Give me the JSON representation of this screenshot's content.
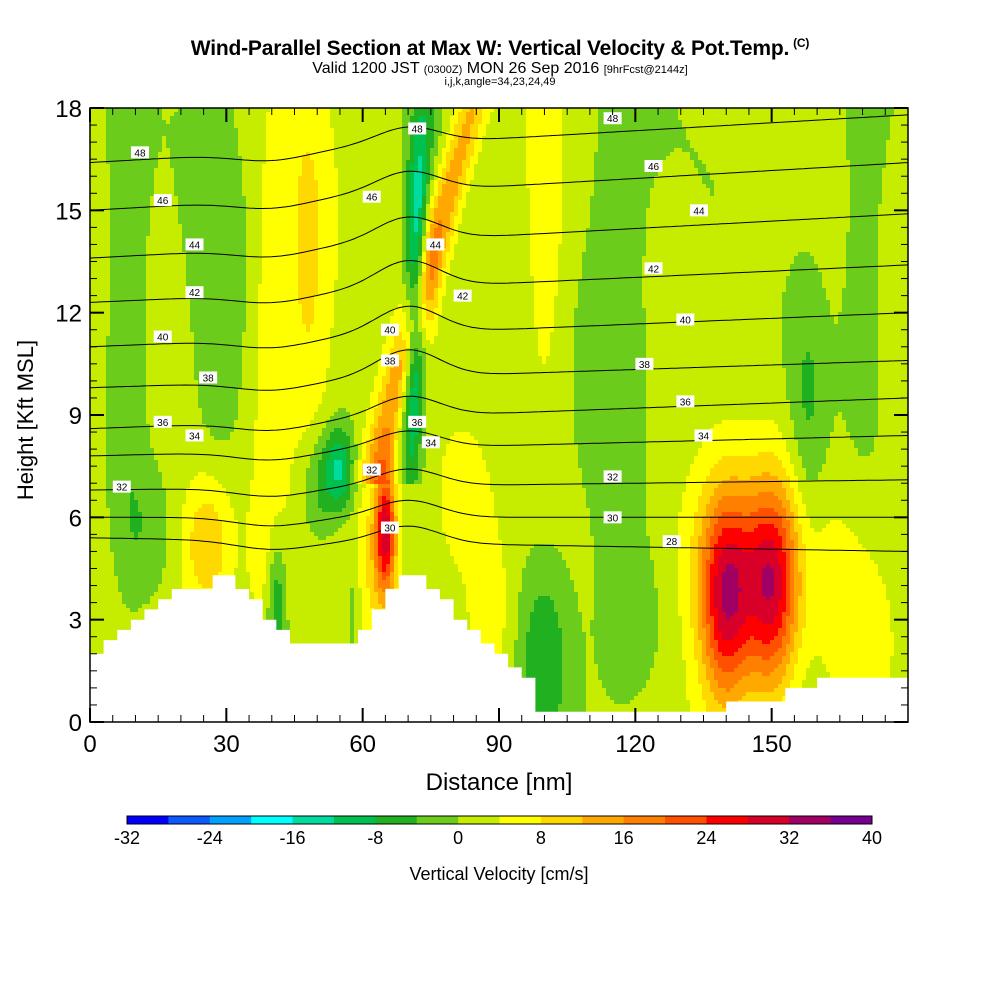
{
  "header": {
    "title": "Wind-Parallel Section at Max W: Vertical Velocity & Pot.Temp.",
    "corner_mark": "(C)",
    "valid_main": "Valid 1200 JST",
    "valid_utc": "(0300Z)",
    "valid_date": "MON 26 Sep 2016",
    "forecast_tag": "[9hrFcst@2144z]",
    "indices": "i,j,k,angle=34,23,24,49"
  },
  "chart_data": {
    "type": "heatmap",
    "xlabel": "Distance [nm]",
    "ylabel": "Height [Kft MSL]",
    "xlim": [
      0,
      180
    ],
    "ylim": [
      0,
      18
    ],
    "x_ticks": [
      0,
      30,
      60,
      90,
      120,
      150
    ],
    "y_ticks": [
      0,
      3,
      6,
      9,
      12,
      15,
      18
    ],
    "colorbar": {
      "label": "Vertical Velocity [cm/s]",
      "levels": [
        -32,
        -28,
        -24,
        -20,
        -16,
        -12,
        -8,
        -4,
        0,
        4,
        8,
        12,
        16,
        20,
        24,
        28,
        32,
        36,
        40
      ],
      "tick_labels": [
        "-32",
        "-24",
        "-16",
        "-8",
        "0",
        "8",
        "16",
        "24",
        "32",
        "40"
      ],
      "colors": [
        "#0000ff",
        "#0c5aff",
        "#00a0ff",
        "#00ffff",
        "#00dca0",
        "#00c050",
        "#20b020",
        "#6ccc1c",
        "#c6ec00",
        "#ffff00",
        "#ffd800",
        "#ffa800",
        "#ff8000",
        "#ff5000",
        "#ff0000",
        "#d80028",
        "#a00064",
        "#780090"
      ]
    },
    "terrain_profile": [
      [
        0,
        2.0
      ],
      [
        3,
        2.0
      ],
      [
        3,
        2.4
      ],
      [
        6,
        2.4
      ],
      [
        6,
        2.7
      ],
      [
        9,
        2.7
      ],
      [
        9,
        3.0
      ],
      [
        12,
        3.0
      ],
      [
        12,
        3.3
      ],
      [
        15,
        3.3
      ],
      [
        15,
        3.6
      ],
      [
        18,
        3.6
      ],
      [
        18,
        3.9
      ],
      [
        27,
        3.9
      ],
      [
        27,
        4.3
      ],
      [
        32,
        4.3
      ],
      [
        32,
        3.9
      ],
      [
        35,
        3.9
      ],
      [
        35,
        3.6
      ],
      [
        38,
        3.6
      ],
      [
        38,
        3.0
      ],
      [
        41,
        3.0
      ],
      [
        41,
        2.7
      ],
      [
        44,
        2.7
      ],
      [
        44,
        2.3
      ],
      [
        59,
        2.3
      ],
      [
        59,
        2.7
      ],
      [
        62,
        2.7
      ],
      [
        62,
        3.3
      ],
      [
        65,
        3.3
      ],
      [
        65,
        3.9
      ],
      [
        68,
        3.9
      ],
      [
        68,
        4.3
      ],
      [
        74,
        4.3
      ],
      [
        74,
        3.9
      ],
      [
        77,
        3.9
      ],
      [
        77,
        3.6
      ],
      [
        80,
        3.6
      ],
      [
        80,
        3.0
      ],
      [
        83,
        3.0
      ],
      [
        83,
        2.7
      ],
      [
        86,
        2.7
      ],
      [
        86,
        2.3
      ],
      [
        89,
        2.3
      ],
      [
        89,
        2.0
      ],
      [
        92,
        2.0
      ],
      [
        92,
        1.6
      ],
      [
        95,
        1.6
      ],
      [
        95,
        1.3
      ],
      [
        98,
        1.3
      ],
      [
        98,
        0.3
      ],
      [
        140,
        0.3
      ],
      [
        140,
        0.6
      ],
      [
        153,
        0.6
      ],
      [
        153,
        1.0
      ],
      [
        160,
        1.0
      ],
      [
        160,
        1.3
      ],
      [
        180,
        1.3
      ]
    ],
    "theta_contours": [
      {
        "value": 28,
        "y_left": 5.4,
        "y_right": 5.0,
        "bump": 0.5,
        "label_at": [
          [
            128,
            5.3
          ]
        ]
      },
      {
        "value": 30,
        "y_left": 6.0,
        "y_right": 6.0,
        "bump": 0.5,
        "label_at": [
          [
            66,
            5.7
          ],
          [
            115,
            6.0
          ]
        ]
      },
      {
        "value": 32,
        "y_left": 6.8,
        "y_right": 7.1,
        "bump": 0.5,
        "label_at": [
          [
            7,
            6.9
          ],
          [
            62,
            7.4
          ],
          [
            115,
            7.2
          ]
        ]
      },
      {
        "value": 34,
        "y_left": 7.8,
        "y_right": 8.4,
        "bump": 0.5,
        "label_at": [
          [
            23,
            8.4
          ],
          [
            75,
            8.2
          ],
          [
            135,
            8.4
          ]
        ]
      },
      {
        "value": 36,
        "y_left": 8.6,
        "y_right": 9.5,
        "bump": 0.6,
        "label_at": [
          [
            16,
            8.8
          ],
          [
            72,
            8.8
          ],
          [
            131,
            9.4
          ]
        ]
      },
      {
        "value": 38,
        "y_left": 9.8,
        "y_right": 10.6,
        "bump": 0.8,
        "label_at": [
          [
            26,
            10.1
          ],
          [
            66,
            10.6
          ],
          [
            122,
            10.5
          ]
        ]
      },
      {
        "value": 40,
        "y_left": 11.0,
        "y_right": 12.0,
        "bump": 0.8,
        "label_at": [
          [
            16,
            11.3
          ],
          [
            66,
            11.5
          ],
          [
            131,
            11.8
          ]
        ]
      },
      {
        "value": 42,
        "y_left": 12.3,
        "y_right": 13.4,
        "bump": 0.8,
        "label_at": [
          [
            23,
            12.6
          ],
          [
            82,
            12.5
          ],
          [
            124,
            13.3
          ]
        ]
      },
      {
        "value": 44,
        "y_left": 13.6,
        "y_right": 14.9,
        "bump": 0.7,
        "label_at": [
          [
            23,
            14.0
          ],
          [
            76,
            14.0
          ],
          [
            134,
            15.0
          ]
        ]
      },
      {
        "value": 46,
        "y_left": 15.0,
        "y_right": 16.4,
        "bump": 0.6,
        "label_at": [
          [
            16,
            15.3
          ],
          [
            62,
            15.4
          ],
          [
            124,
            16.3
          ]
        ]
      },
      {
        "value": 48,
        "y_left": 16.4,
        "y_right": 17.8,
        "bump": 0.5,
        "label_at": [
          [
            11,
            16.7
          ],
          [
            72,
            17.4
          ],
          [
            115,
            17.7
          ]
        ]
      }
    ]
  }
}
